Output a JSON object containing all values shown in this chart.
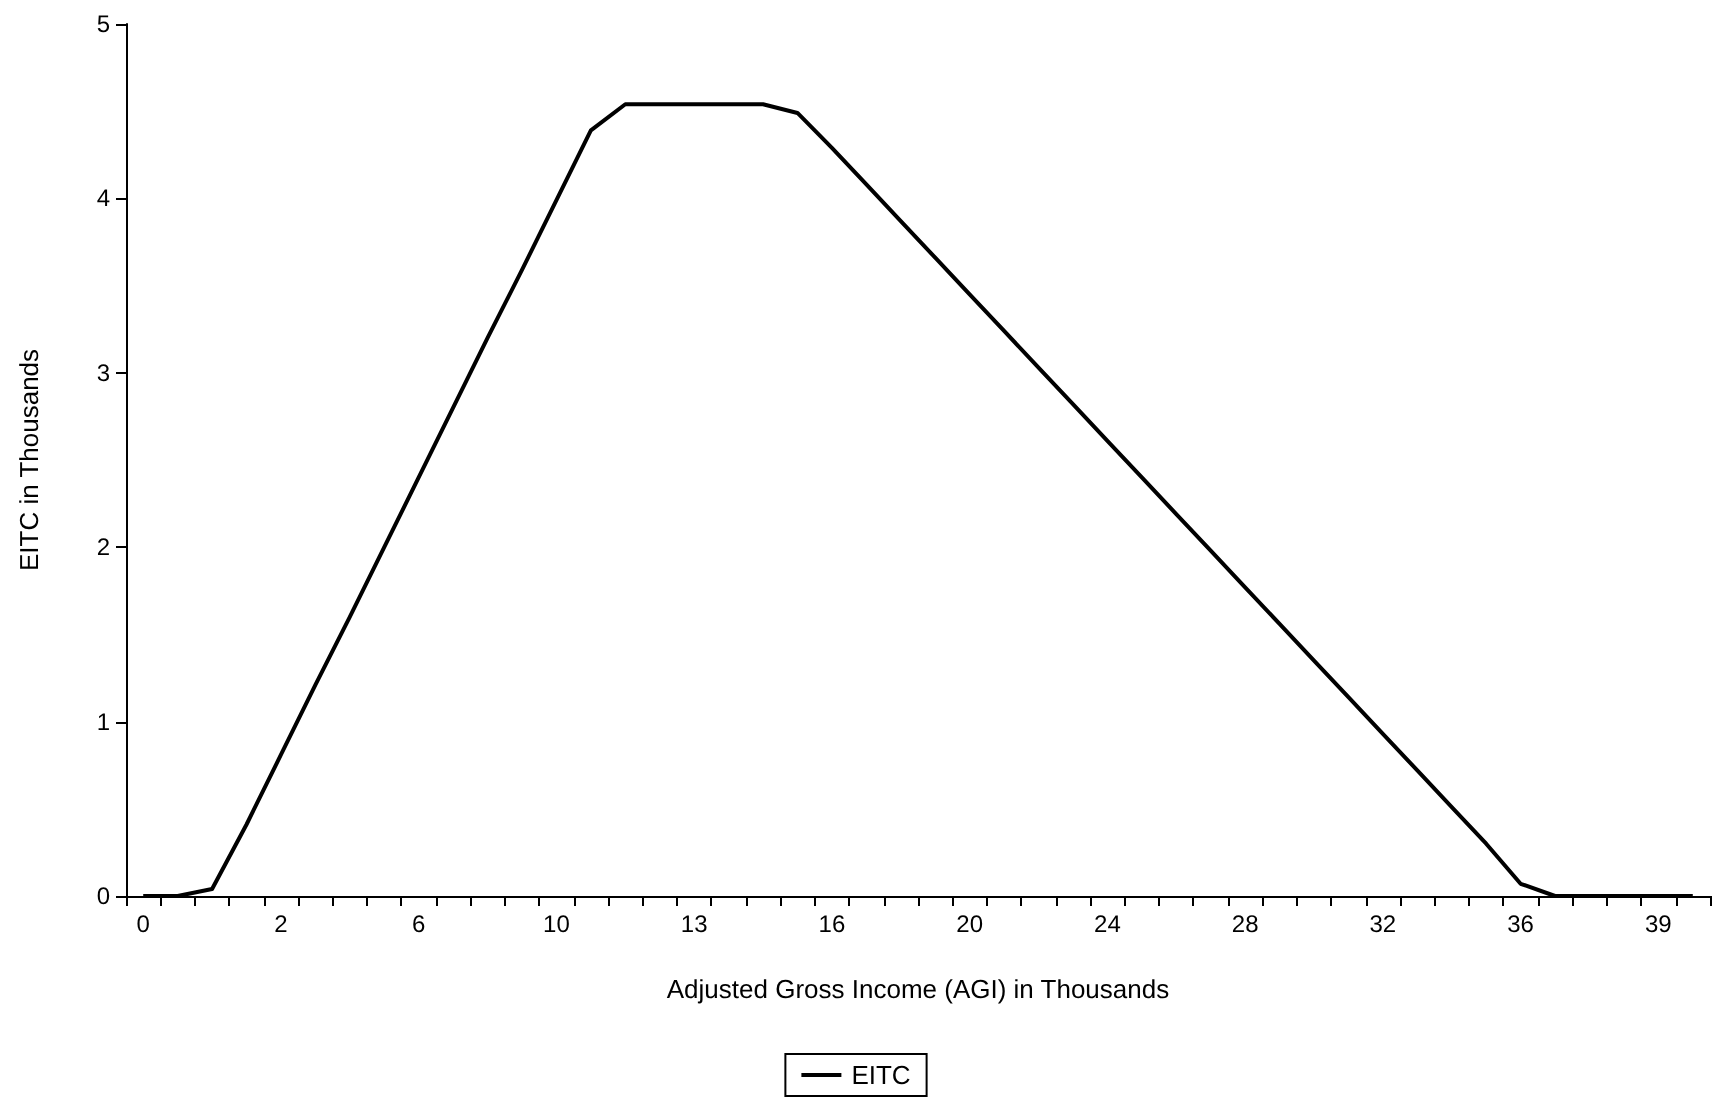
{
  "chart_data": {
    "type": "line",
    "xlabel": "Adjusted Gross Income (AGI) in Thousands",
    "ylabel": "EITC in Thousands",
    "categories": [
      "0",
      null,
      null,
      null,
      "2",
      null,
      null,
      null,
      "6",
      null,
      null,
      null,
      "10",
      null,
      null,
      null,
      "13",
      null,
      null,
      null,
      "16",
      null,
      null,
      null,
      "20",
      null,
      null,
      null,
      "24",
      null,
      null,
      null,
      "28",
      null,
      null,
      null,
      "32",
      null,
      null,
      null,
      "36",
      null,
      null,
      null,
      "39",
      null
    ],
    "series": [
      {
        "name": "EITC",
        "color": "#000000",
        "values": [
          0,
          0,
          0.04,
          0.41,
          0.81,
          1.21,
          1.6,
          2.0,
          2.4,
          2.8,
          3.2,
          3.59,
          3.99,
          4.39,
          4.54,
          4.54,
          4.54,
          4.54,
          4.54,
          4.49,
          4.29,
          4.08,
          3.87,
          3.66,
          3.45,
          3.24,
          3.03,
          2.82,
          2.61,
          2.4,
          2.19,
          1.98,
          1.77,
          1.56,
          1.35,
          1.14,
          0.93,
          0.72,
          0.51,
          0.3,
          0.07,
          0,
          0,
          0,
          0,
          0
        ]
      }
    ],
    "ylim": [
      0,
      5
    ],
    "yticks": [
      0,
      1,
      2,
      3,
      4,
      5
    ],
    "grid": false,
    "legend": "bottom",
    "marker": "none",
    "line_style": "solid"
  }
}
